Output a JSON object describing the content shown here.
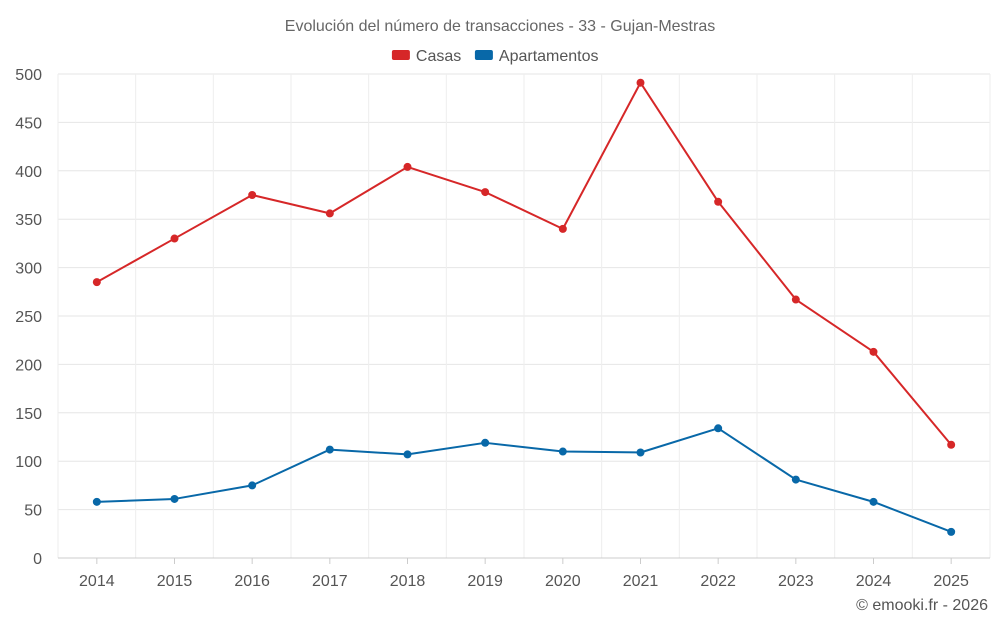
{
  "chart_data": {
    "type": "line",
    "title": "Evolución del número de transacciones - 33 - Gujan-Mestras",
    "xlabel": "",
    "ylabel": "",
    "categories": [
      "2014",
      "2015",
      "2016",
      "2017",
      "2018",
      "2019",
      "2020",
      "2021",
      "2022",
      "2023",
      "2024",
      "2025"
    ],
    "series": [
      {
        "name": "Casas",
        "color": "#d62728",
        "values": [
          285,
          330,
          375,
          356,
          404,
          378,
          340,
          491,
          368,
          267,
          213,
          117
        ]
      },
      {
        "name": "Apartamentos",
        "color": "#0868a8",
        "values": [
          58,
          61,
          75,
          112,
          107,
          119,
          110,
          109,
          134,
          81,
          58,
          27
        ]
      }
    ],
    "ylim": [
      0,
      500
    ],
    "yticks": [
      0,
      50,
      100,
      150,
      200,
      250,
      300,
      350,
      400,
      450,
      500
    ],
    "grid": true,
    "legend_position": "top-center"
  },
  "credit": "© emooki.fr - 2026"
}
